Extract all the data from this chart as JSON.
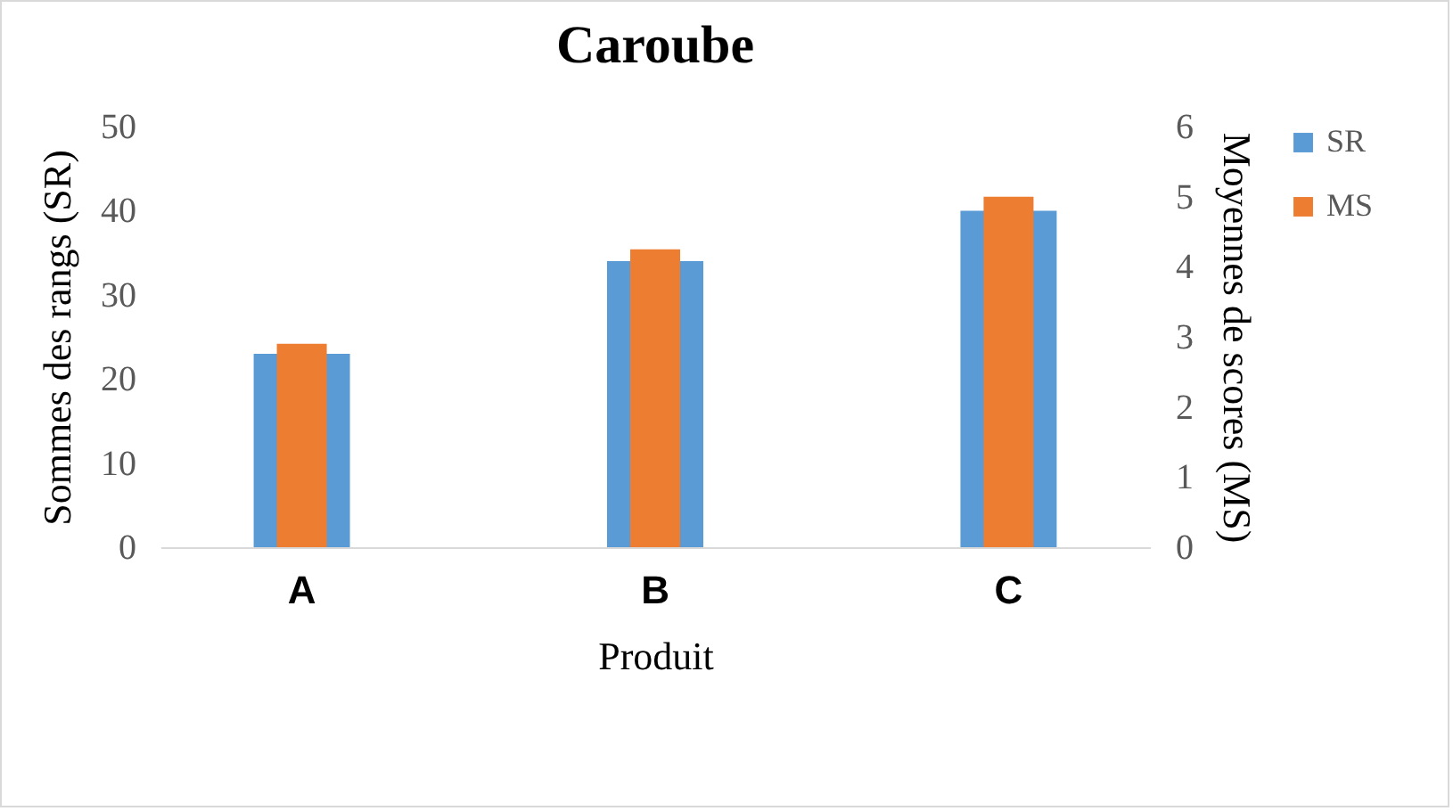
{
  "chart_data": {
    "type": "bar",
    "title": "Caroube",
    "xlabel": "Produit",
    "ylabel": "Sommes des rangs (SR)",
    "y2label": "Moyennes de scores (MS)",
    "categories": [
      "A",
      "B",
      "C"
    ],
    "series": [
      {
        "name": "SR",
        "color": "#5b9bd5",
        "values": [
          23,
          34,
          40
        ]
      },
      {
        "name": "MS",
        "color": "#ed7d31",
        "axis": "y2",
        "values": [
          2.9,
          4.25,
          5
        ]
      }
    ],
    "ylim": [
      0,
      50
    ],
    "yticks": [
      0,
      10,
      20,
      30,
      40,
      50
    ],
    "y2lim": [
      0,
      6
    ],
    "y2ticks": [
      0,
      1,
      2,
      3,
      4,
      5,
      6
    ],
    "legend": "right"
  }
}
